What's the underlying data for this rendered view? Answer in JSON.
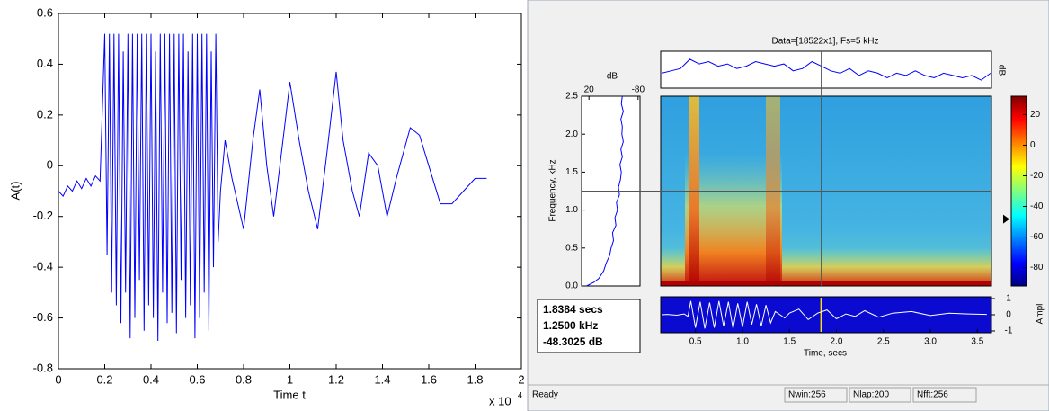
{
  "chart_data": [
    {
      "type": "line",
      "xlabel": "Time t",
      "ylabel": "A(t)",
      "x_multiplier": {
        "base": "x 10",
        "exponent": "4"
      },
      "xlim": [
        0,
        2
      ],
      "ylim": [
        -0.8,
        0.6
      ],
      "xticks": [
        0,
        0.2,
        0.4,
        0.6,
        0.8,
        1,
        1.2,
        1.4,
        1.6,
        1.8,
        2
      ],
      "yticks": [
        -0.8,
        -0.6,
        -0.4,
        -0.2,
        0,
        0.2,
        0.4,
        0.6
      ],
      "series": [
        {
          "color": "#0000ff",
          "x": [
            0,
            0.02,
            0.04,
            0.06,
            0.08,
            0.1,
            0.12,
            0.14,
            0.16,
            0.18,
            0.2,
            0.21,
            0.22,
            0.23,
            0.24,
            0.25,
            0.26,
            0.27,
            0.28,
            0.29,
            0.3,
            0.31,
            0.32,
            0.33,
            0.34,
            0.35,
            0.36,
            0.37,
            0.38,
            0.39,
            0.4,
            0.41,
            0.42,
            0.43,
            0.44,
            0.45,
            0.46,
            0.47,
            0.48,
            0.49,
            0.5,
            0.51,
            0.52,
            0.53,
            0.54,
            0.55,
            0.56,
            0.57,
            0.58,
            0.59,
            0.6,
            0.61,
            0.62,
            0.63,
            0.64,
            0.65,
            0.66,
            0.67,
            0.68,
            0.69,
            0.7,
            0.72,
            0.75,
            0.8,
            0.84,
            0.87,
            0.9,
            0.93,
            0.97,
            1,
            1.04,
            1.08,
            1.12,
            1.16,
            1.2,
            1.23,
            1.27,
            1.3,
            1.34,
            1.38,
            1.42,
            1.46,
            1.52,
            1.56,
            1.6,
            1.65,
            1.7,
            1.75,
            1.8,
            1.85
          ],
          "values": [
            -0.1,
            -0.12,
            -0.08,
            -0.1,
            -0.06,
            -0.09,
            -0.05,
            -0.08,
            -0.04,
            -0.06,
            0.52,
            -0.35,
            0.52,
            -0.5,
            0.52,
            -0.55,
            0.52,
            -0.62,
            0.45,
            -0.5,
            0.52,
            -0.68,
            0.52,
            -0.6,
            0.52,
            -0.45,
            0.52,
            -0.65,
            0.52,
            -0.55,
            0.52,
            -0.6,
            0.45,
            -0.69,
            0.52,
            -0.5,
            0.52,
            -0.62,
            0.52,
            -0.58,
            0.52,
            -0.66,
            0.52,
            -0.45,
            0.52,
            -0.6,
            0.45,
            -0.55,
            0.52,
            -0.68,
            0.52,
            -0.6,
            0.52,
            -0.5,
            0.52,
            -0.65,
            0.45,
            -0.4,
            0.52,
            -0.3,
            -0.1,
            0.1,
            -0.05,
            -0.25,
            0.1,
            0.3,
            0,
            -0.2,
            0.1,
            0.33,
            0.1,
            -0.1,
            -0.25,
            0.05,
            0.37,
            0.1,
            -0.1,
            -0.2,
            0.05,
            0,
            -0.2,
            -0.05,
            0.15,
            0.12,
            0,
            -0.15,
            -0.15,
            -0.1,
            -0.05,
            -0.05
          ]
        }
      ]
    },
    {
      "type": "line",
      "title": "Data=[18522x1], Fs=5 kHz",
      "ylabel": "dB",
      "series": [
        {
          "color": "#0000ff",
          "x": [
            0.14,
            0.24,
            0.34,
            0.44,
            0.54,
            0.64,
            0.74,
            0.84,
            0.94,
            1.04,
            1.14,
            1.24,
            1.34,
            1.44,
            1.54,
            1.64,
            1.74,
            1.84,
            1.94,
            2.04,
            2.14,
            2.24,
            2.34,
            2.44,
            2.54,
            2.64,
            2.74,
            2.84,
            2.94,
            3.04,
            3.14,
            3.24,
            3.34,
            3.44,
            3.54,
            3.64
          ],
          "values": [
            -26,
            -25,
            -24,
            -20,
            -22,
            -21,
            -23,
            -22,
            -24,
            -23,
            -21,
            -22,
            -23,
            -22,
            -25,
            -24,
            -21,
            -23,
            -25,
            -26,
            -24,
            -27,
            -25,
            -26,
            -28,
            -26,
            -27,
            -25,
            -27,
            -28,
            -26,
            -27,
            -28,
            -27,
            -29,
            -26
          ]
        }
      ]
    },
    {
      "type": "line",
      "orientation": "horizontal",
      "xlabel": "dB",
      "ylabel": "Frequency, kHz",
      "xlim": [
        35,
        -84
      ],
      "xticks": [
        20,
        -80
      ],
      "ylim": [
        0,
        2.5
      ],
      "yticks": [
        {
          "value": 0,
          "label": "0.0"
        },
        0.5,
        {
          "value": 1,
          "label": "1.0"
        },
        1.5,
        {
          "value": 2,
          "label": "2.0"
        },
        2.5
      ],
      "series": [
        {
          "color": "#0000ff",
          "x": [
            0,
            0.05,
            0.1,
            0.2,
            0.3,
            0.4,
            0.5,
            0.6,
            0.7,
            0.8,
            0.9,
            1,
            1.1,
            1.2,
            1.3,
            1.4,
            1.5,
            1.6,
            1.7,
            1.8,
            1.9,
            2,
            2.1,
            2.2,
            2.3,
            2.4,
            2.5
          ],
          "values": [
            25,
            10,
            0,
            -10,
            -15,
            -22,
            -25,
            -30,
            -28,
            -35,
            -33,
            -38,
            -36,
            -42,
            -40,
            -44,
            -46,
            -43,
            -48,
            -45,
            -50,
            -47,
            -48,
            -45,
            -50,
            -46,
            -48
          ]
        }
      ]
    },
    {
      "type": "spectrogram",
      "xlabel": "Time, secs",
      "xlim": [
        0.13,
        3.65
      ],
      "xticks": [
        0.5,
        {
          "value": 1,
          "label": "1.0"
        },
        1.5,
        {
          "value": 2,
          "label": "2.0"
        },
        2.5,
        {
          "value": 3,
          "label": "3.0"
        },
        3.5
      ],
      "ylim": [
        0,
        2.5
      ],
      "clim": [
        -92,
        32
      ],
      "cticks": [
        20,
        0,
        -20,
        -40,
        -60,
        -80
      ],
      "cursor": {
        "time": 1.8384,
        "frequency": 1.25,
        "level": -48.3025
      }
    },
    {
      "type": "line",
      "ylabel": "Ampl",
      "ylim": [
        -1,
        1
      ],
      "yticks": [
        1,
        0,
        -1
      ],
      "series": [
        {
          "color": "#ffffff",
          "x": [
            0.14,
            0.2,
            0.3,
            0.38,
            0.42,
            0.45,
            0.5,
            0.55,
            0.6,
            0.65,
            0.7,
            0.75,
            0.8,
            0.85,
            0.9,
            0.95,
            1,
            1.05,
            1.1,
            1.15,
            1.2,
            1.25,
            1.3,
            1.35,
            1.45,
            1.5,
            1.6,
            1.7,
            1.8,
            1.9,
            2,
            2.1,
            2.2,
            2.3,
            2.45,
            2.6,
            2.8,
            3,
            3.2,
            3.4,
            3.6
          ],
          "values": [
            0,
            0.02,
            -0.03,
            0.05,
            -0.1,
            0.85,
            -0.8,
            0.8,
            -0.85,
            0.75,
            -0.8,
            0.85,
            -0.7,
            0.8,
            -0.85,
            0.7,
            -0.75,
            0.8,
            -0.6,
            0.65,
            -0.7,
            0.6,
            -0.5,
            0.2,
            -0.2,
            0.1,
            0.35,
            -0.3,
            0.1,
            0.3,
            -0.25,
            0.05,
            -0.1,
            0.25,
            -0.15,
            0.1,
            0.2,
            -0.05,
            0.1,
            0.05,
            0.02
          ]
        }
      ]
    }
  ],
  "readout": [
    "1.8384 secs",
    "1.2500 kHz",
    "-48.3025 dB"
  ],
  "status_bar": {
    "message": "Ready",
    "fields": [
      "Nwin:256",
      "Nlap:200",
      "Nfft:256"
    ]
  }
}
